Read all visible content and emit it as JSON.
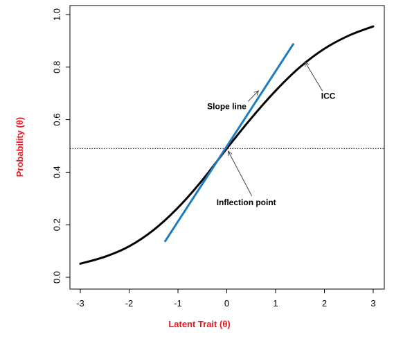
{
  "chart_data": {
    "type": "line",
    "title": "",
    "xlabel": "Latent Trait (θ)",
    "ylabel": "Probability (θ)",
    "xlim": [
      -3,
      3
    ],
    "ylim": [
      0,
      1
    ],
    "x_ticks": [
      "-3",
      "-2",
      "-1",
      "0",
      "1",
      "2",
      "3"
    ],
    "y_ticks": [
      "0.0",
      "0.2",
      "0.4",
      "0.6",
      "0.8",
      "1.0"
    ],
    "axis_title_color": "#e8141e",
    "series": [
      {
        "color": "#000000",
        "x": [
          -3,
          -2.5,
          -2,
          -1.5,
          -1,
          -0.5,
          0,
          0.5,
          1,
          1.5,
          2,
          2.5,
          3
        ],
        "y": [
          0.052,
          0.078,
          0.118,
          0.18,
          0.265,
          0.37,
          0.49,
          0.605,
          0.71,
          0.8,
          0.87,
          0.92,
          0.955
        ]
      },
      {
        "color": "#1e7bbf",
        "x": [
          -1.27,
          1.37
        ],
        "y": [
          0.135,
          0.89
        ]
      }
    ],
    "reference_line": {
      "y": 0.49,
      "style": "dotted"
    },
    "annotations": [
      {
        "text": "Slope line",
        "x": 0.0,
        "y": 0.64,
        "arrow_to": [
          0.65,
          0.71
        ]
      },
      {
        "text": "ICC",
        "x": 2.08,
        "y": 0.68,
        "arrow_to": [
          1.6,
          0.82
        ]
      },
      {
        "text": "Inflection point",
        "x": 0.4,
        "y": 0.275,
        "arrow_to": [
          0.03,
          0.48
        ]
      }
    ]
  }
}
